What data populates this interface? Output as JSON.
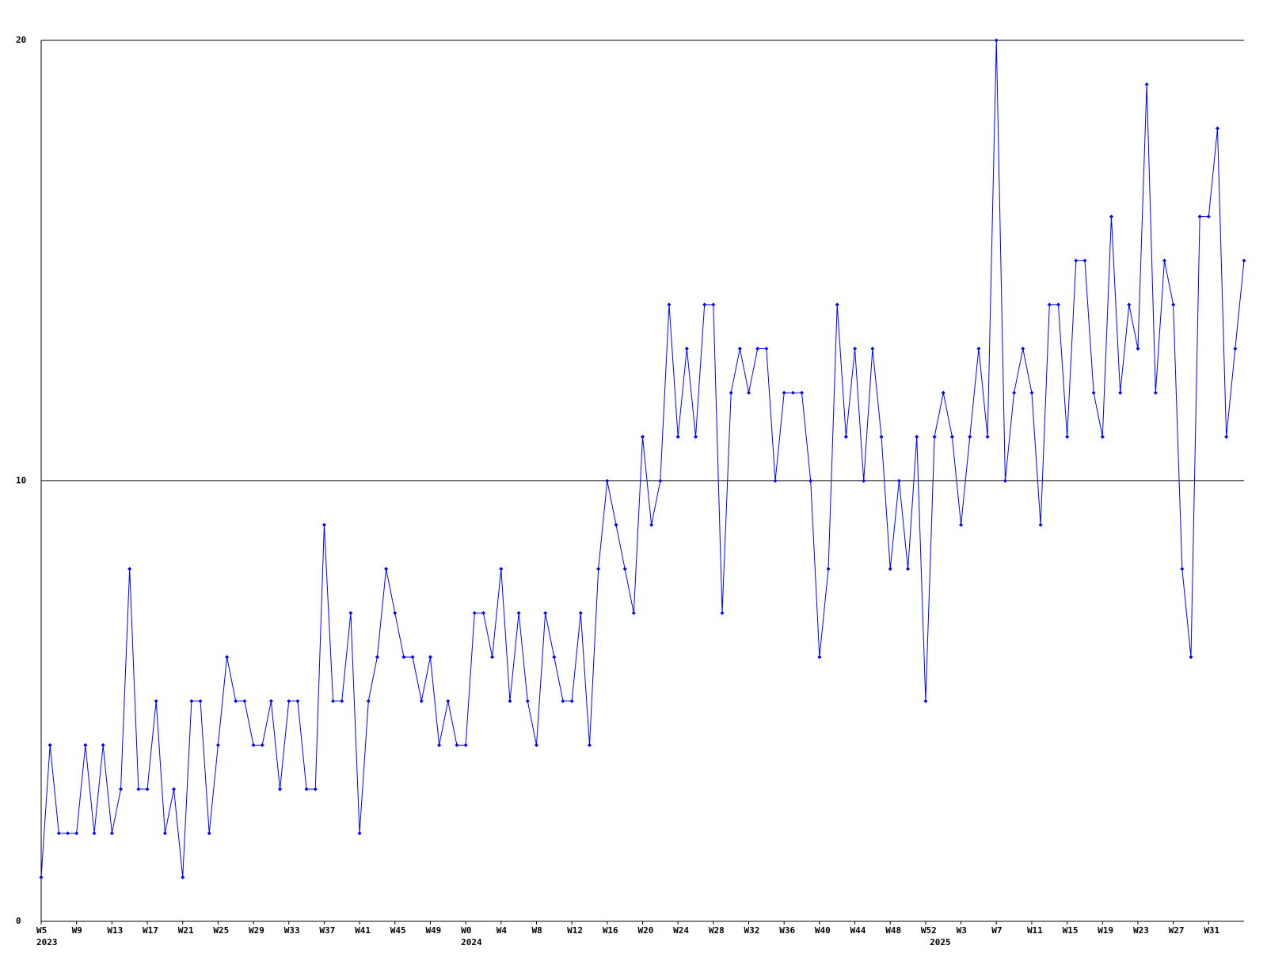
{
  "chart_data": {
    "type": "line",
    "categories": [
      "W5",
      null,
      null,
      null,
      "W9",
      null,
      null,
      null,
      "W13",
      null,
      null,
      null,
      "W17",
      null,
      null,
      null,
      "W21",
      null,
      null,
      null,
      "W25",
      null,
      null,
      null,
      "W29",
      null,
      null,
      null,
      "W33",
      null,
      null,
      null,
      "W37",
      null,
      null,
      null,
      "W41",
      null,
      null,
      null,
      "W45",
      null,
      null,
      null,
      "W49",
      null,
      null,
      null,
      "W0",
      null,
      null,
      null,
      "W4",
      null,
      null,
      null,
      "W8",
      null,
      null,
      null,
      "W12",
      null,
      null,
      null,
      "W16",
      null,
      null,
      null,
      "W20",
      null,
      null,
      null,
      "W24",
      null,
      null,
      null,
      "W28",
      null,
      null,
      null,
      "W32",
      null,
      null,
      null,
      "W36",
      null,
      null,
      null,
      "W40",
      null,
      null,
      null,
      "W44",
      null,
      null,
      null,
      "W48",
      null,
      null,
      null,
      "W52",
      null,
      null,
      null,
      "W3",
      null,
      null,
      null,
      "W7",
      null,
      null,
      null,
      "W11",
      null,
      null,
      null,
      "W15",
      null,
      null,
      null,
      "W19",
      null,
      null,
      null,
      "W23",
      null,
      null,
      null,
      "W27",
      null,
      null,
      null,
      "W31",
      null,
      null,
      null,
      null
    ],
    "category_years": [
      "2023",
      null,
      null,
      null,
      null,
      null,
      null,
      null,
      null,
      null,
      null,
      null,
      null,
      null,
      null,
      null,
      null,
      null,
      null,
      null,
      null,
      null,
      null,
      null,
      null,
      null,
      null,
      null,
      null,
      null,
      null,
      null,
      null,
      null,
      null,
      null,
      null,
      null,
      null,
      null,
      null,
      null,
      null,
      null,
      null,
      null,
      null,
      null,
      "2024",
      null,
      null,
      null,
      null,
      null,
      null,
      null,
      null,
      null,
      null,
      null,
      null,
      null,
      null,
      null,
      null,
      null,
      null,
      null,
      null,
      null,
      null,
      null,
      null,
      null,
      null,
      null,
      null,
      null,
      null,
      null,
      null,
      null,
      null,
      null,
      null,
      null,
      null,
      null,
      null,
      null,
      null,
      null,
      null,
      null,
      null,
      null,
      null,
      null,
      null,
      null,
      null,
      "2025",
      null,
      null,
      null,
      null,
      null,
      null,
      null,
      null,
      null,
      null,
      null,
      null,
      null,
      null,
      null,
      null,
      null,
      null,
      null,
      null,
      null,
      null,
      null,
      null,
      null,
      null,
      null,
      null,
      null,
      null,
      null,
      null,
      null,
      null
    ],
    "values": [
      1,
      4,
      2,
      2,
      2,
      4,
      2,
      4,
      2,
      3,
      8,
      3,
      3,
      5,
      2,
      3,
      1,
      5,
      5,
      2,
      4,
      6,
      5,
      5,
      4,
      4,
      5,
      3,
      5,
      5,
      3,
      3,
      9,
      5,
      5,
      7,
      2,
      5,
      6,
      8,
      7,
      6,
      6,
      5,
      6,
      4,
      5,
      4,
      4,
      7,
      7,
      6,
      8,
      5,
      7,
      5,
      4,
      7,
      6,
      5,
      5,
      7,
      4,
      8,
      10,
      9,
      8,
      7,
      11,
      9,
      10,
      14,
      11,
      13,
      11,
      14,
      14,
      7,
      12,
      13,
      12,
      13,
      13,
      10,
      12,
      12,
      12,
      10,
      6,
      8,
      14,
      11,
      13,
      10,
      13,
      11,
      8,
      10,
      8,
      11,
      5,
      11,
      12,
      11,
      9,
      11,
      13,
      11,
      20,
      10,
      12,
      13,
      12,
      9,
      14,
      14,
      11,
      15,
      15,
      12,
      11,
      16,
      12,
      14,
      13,
      19,
      12,
      15,
      14,
      8,
      6,
      16,
      16,
      18,
      11,
      13,
      15
    ],
    "color": "#0000ff",
    "ylim": [
      0,
      20
    ],
    "yticks": [
      0,
      10,
      20
    ],
    "grid": true
  }
}
